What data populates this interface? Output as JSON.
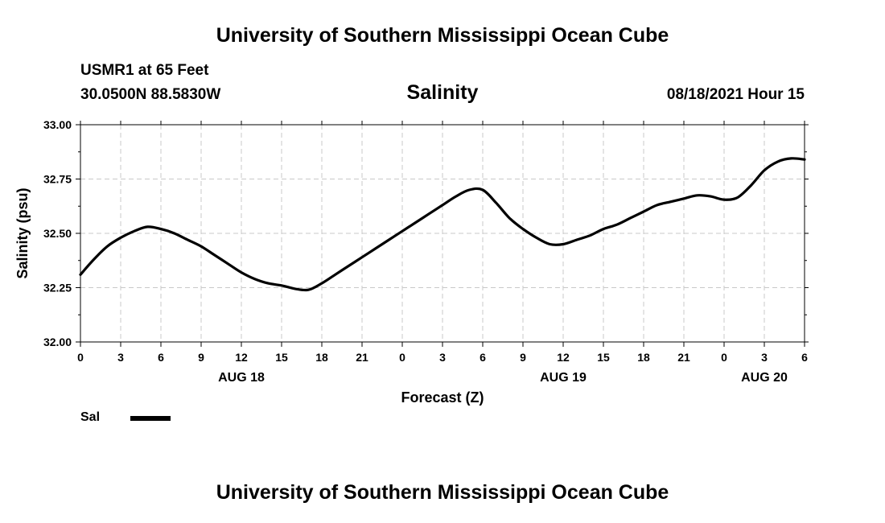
{
  "header": {
    "title": "University of Southern Mississippi Ocean Cube",
    "station": "USMR1 at 65 Feet",
    "coords": "30.0500N  88.5830W",
    "plot_title": "Salinity",
    "timestamp": "08/18/2021 Hour 15"
  },
  "footer": {
    "title": "University of Southern Mississippi Ocean Cube"
  },
  "legend": {
    "label": "Sal"
  },
  "chart_data": {
    "type": "line",
    "title": "Salinity",
    "xlabel": "Forecast (Z)",
    "ylabel": "Salinity (psu)",
    "xlim": [
      0,
      54
    ],
    "ylim": [
      32.0,
      33.0
    ],
    "grid": true,
    "yticks": [
      "32.00",
      "32.25",
      "32.50",
      "32.75",
      "33.00"
    ],
    "xticks": [
      {
        "hour": 0,
        "label": "0"
      },
      {
        "hour": 3,
        "label": "3"
      },
      {
        "hour": 6,
        "label": "6"
      },
      {
        "hour": 9,
        "label": "9"
      },
      {
        "hour": 12,
        "label": "12"
      },
      {
        "hour": 15,
        "label": "15"
      },
      {
        "hour": 18,
        "label": "18"
      },
      {
        "hour": 21,
        "label": "21"
      },
      {
        "hour": 24,
        "label": "0"
      },
      {
        "hour": 27,
        "label": "3"
      },
      {
        "hour": 30,
        "label": "6"
      },
      {
        "hour": 33,
        "label": "9"
      },
      {
        "hour": 36,
        "label": "12"
      },
      {
        "hour": 39,
        "label": "15"
      },
      {
        "hour": 42,
        "label": "18"
      },
      {
        "hour": 45,
        "label": "21"
      },
      {
        "hour": 48,
        "label": "0"
      },
      {
        "hour": 51,
        "label": "3"
      },
      {
        "hour": 54,
        "label": "6"
      }
    ],
    "day_labels": [
      {
        "hour": 12,
        "label": "AUG 18"
      },
      {
        "hour": 36,
        "label": "AUG 19"
      },
      {
        "hour": 51,
        "label": "AUG 20"
      }
    ],
    "series": [
      {
        "name": "Sal",
        "x": [
          0,
          1,
          2,
          3,
          4,
          5,
          6,
          7,
          8,
          9,
          10,
          11,
          12,
          13,
          14,
          15,
          16,
          17,
          18,
          19,
          20,
          21,
          22,
          23,
          24,
          25,
          26,
          27,
          28,
          29,
          30,
          31,
          32,
          33,
          34,
          35,
          36,
          37,
          38,
          39,
          40,
          41,
          42,
          43,
          44,
          45,
          46,
          47,
          48,
          49,
          50,
          51,
          52,
          53,
          54
        ],
        "values": [
          32.31,
          32.38,
          32.44,
          32.48,
          32.51,
          32.53,
          32.52,
          32.5,
          32.47,
          32.44,
          32.4,
          32.36,
          32.32,
          32.29,
          32.27,
          32.26,
          32.245,
          32.24,
          32.27,
          32.31,
          32.35,
          32.39,
          32.43,
          32.47,
          32.51,
          32.55,
          32.59,
          32.63,
          32.67,
          32.7,
          32.7,
          32.64,
          32.57,
          32.52,
          32.48,
          32.45,
          32.45,
          32.47,
          32.49,
          32.52,
          32.54,
          32.57,
          32.6,
          32.63,
          32.645,
          32.66,
          32.675,
          32.67,
          32.655,
          32.665,
          32.72,
          32.79,
          32.83,
          32.845,
          32.84
        ]
      }
    ]
  }
}
